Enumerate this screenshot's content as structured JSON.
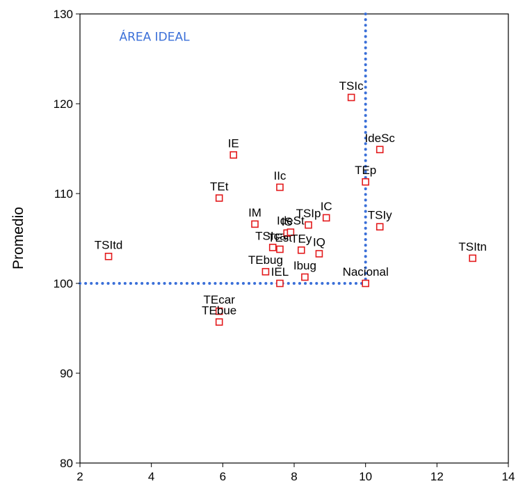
{
  "chart_data": {
    "type": "scatter",
    "title": "",
    "xlabel": "",
    "ylabel": "Promedio",
    "xlim": [
      2,
      14
    ],
    "ylim": [
      80,
      130
    ],
    "xticks": [
      2,
      4,
      6,
      8,
      10,
      12,
      14
    ],
    "yticks": [
      80,
      90,
      100,
      110,
      120,
      130
    ],
    "grid": false,
    "marker_color": "#e31a1c",
    "reference_color": "#3a6fd8",
    "annotation": {
      "text": "ÁREA IDEAL",
      "x": 3.1,
      "y": 127
    },
    "reference_lines": {
      "x": 10,
      "y": 100
    },
    "points": [
      {
        "label": "TSItd",
        "x": 2.8,
        "y": 103.0
      },
      {
        "label": "TSItn",
        "x": 13.0,
        "y": 102.8
      },
      {
        "label": "TSIc",
        "x": 9.6,
        "y": 120.7
      },
      {
        "label": "IdeSc",
        "x": 10.4,
        "y": 114.9
      },
      {
        "label": "TEp",
        "x": 10.0,
        "y": 111.3
      },
      {
        "label": "TSIy",
        "x": 10.4,
        "y": 106.3
      },
      {
        "label": "Nacional",
        "x": 10.0,
        "y": 100.0
      },
      {
        "label": "IE",
        "x": 6.3,
        "y": 114.3
      },
      {
        "label": "TEt",
        "x": 5.9,
        "y": 109.5
      },
      {
        "label": "IIc",
        "x": 7.6,
        "y": 110.7
      },
      {
        "label": "IM",
        "x": 6.9,
        "y": 106.6
      },
      {
        "label": "TSIcar",
        "x": 7.4,
        "y": 104.0
      },
      {
        "label": "IS",
        "x": 7.8,
        "y": 105.6
      },
      {
        "label": "TSIp",
        "x": 8.4,
        "y": 106.5
      },
      {
        "label": "IC",
        "x": 8.9,
        "y": 107.3
      },
      {
        "label": "TEst",
        "x": 7.6,
        "y": 103.8
      },
      {
        "label": "IdeSt",
        "x": 7.9,
        "y": 105.7
      },
      {
        "label": "TEy",
        "x": 8.2,
        "y": 103.7
      },
      {
        "label": "IQ",
        "x": 8.7,
        "y": 103.3
      },
      {
        "label": "TEbug",
        "x": 7.2,
        "y": 101.3
      },
      {
        "label": "IEL",
        "x": 7.6,
        "y": 100.0
      },
      {
        "label": "Ibug",
        "x": 8.3,
        "y": 100.7
      },
      {
        "label": "TEcar",
        "x": 5.9,
        "y": 96.9
      },
      {
        "label": "TEbue",
        "x": 5.9,
        "y": 95.7
      }
    ]
  }
}
